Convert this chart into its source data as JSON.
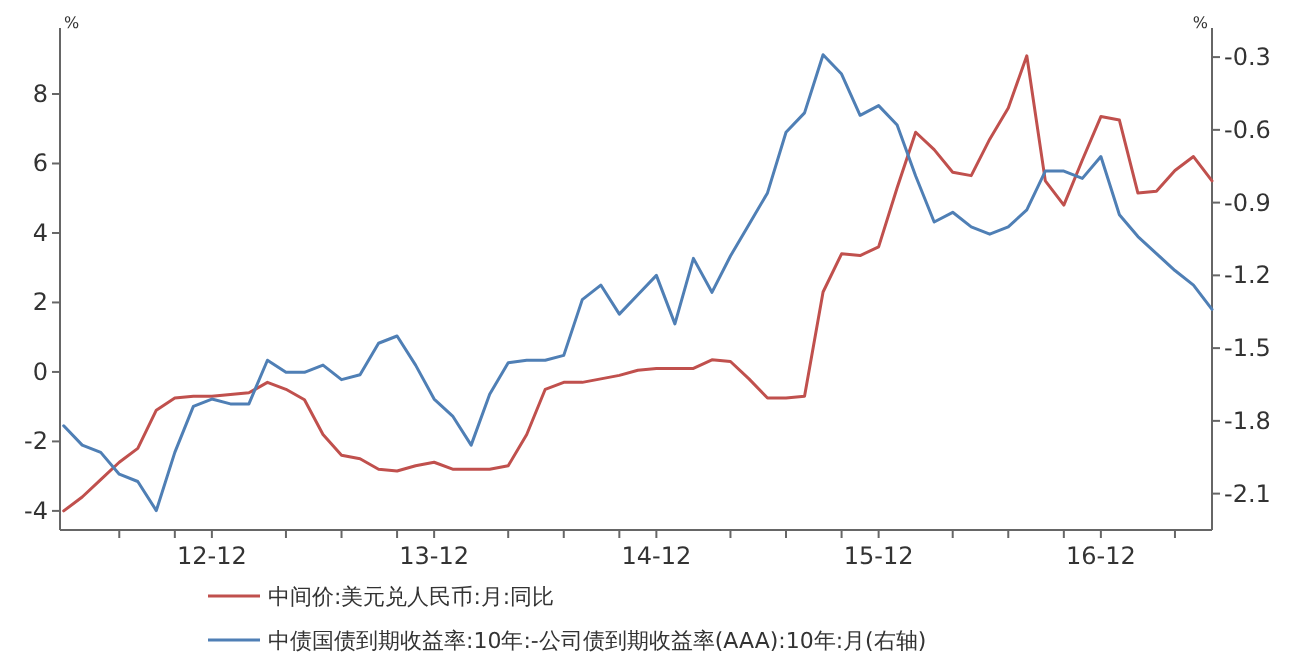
{
  "chart_data": {
    "type": "line",
    "ylabel": "%",
    "y2label": "%",
    "x": [
      "2012-04",
      "2012-05",
      "2012-06",
      "2012-07",
      "2012-08",
      "2012-09",
      "2012-10",
      "2012-11",
      "2012-12",
      "2013-01",
      "2013-02",
      "2013-03",
      "2013-04",
      "2013-05",
      "2013-06",
      "2013-07",
      "2013-08",
      "2013-09",
      "2013-10",
      "2013-11",
      "2013-12",
      "2014-01",
      "2014-02",
      "2014-03",
      "2014-04",
      "2014-05",
      "2014-06",
      "2014-07",
      "2014-08",
      "2014-09",
      "2014-10",
      "2014-11",
      "2014-12",
      "2015-01",
      "2015-02",
      "2015-03",
      "2015-04",
      "2015-05",
      "2015-06",
      "2015-07",
      "2015-08",
      "2015-09",
      "2015-10",
      "2015-11",
      "2015-12",
      "2016-01",
      "2016-02",
      "2016-03",
      "2016-04",
      "2016-05",
      "2016-06",
      "2016-07",
      "2016-08",
      "2016-09",
      "2016-10",
      "2016-11",
      "2016-12",
      "2017-01",
      "2017-02",
      "2017-03",
      "2017-04",
      "2017-05",
      "2017-06"
    ],
    "series": [
      {
        "name": "中间价:美元兑人民币:月:同比",
        "color": "#c0504d",
        "values": [
          -4.0,
          -3.6,
          -3.1,
          -2.6,
          -2.2,
          -1.1,
          -0.75,
          -0.7,
          -0.7,
          -0.65,
          -0.6,
          -0.3,
          -0.5,
          -0.8,
          -1.8,
          -2.4,
          -2.5,
          -2.8,
          -2.85,
          -2.7,
          -2.6,
          -2.8,
          -2.8,
          -2.8,
          -2.7,
          -1.8,
          -0.5,
          -0.3,
          -0.3,
          -0.2,
          -0.1,
          0.05,
          0.1,
          0.1,
          0.1,
          0.35,
          0.3,
          -0.2,
          -0.75,
          -0.75,
          -0.7,
          2.3,
          3.4,
          3.35,
          3.6,
          5.3,
          6.9,
          6.4,
          5.75,
          5.65,
          6.7,
          7.6,
          9.1,
          5.5,
          4.8,
          6.1,
          7.35,
          7.25,
          5.15,
          5.2,
          5.8,
          6.2,
          5.5
        ]
      },
      {
        "name": "中债国债到期收益率:10年:-公司债到期收益率(AAA):10年:月(右轴)",
        "color": "#4f7fb5",
        "axis": "y2",
        "values": [
          -1.82,
          -1.9,
          -1.93,
          -2.02,
          -2.05,
          -2.17,
          -1.93,
          -1.74,
          -1.71,
          -1.73,
          -1.73,
          -1.55,
          -1.6,
          -1.6,
          -1.57,
          -1.63,
          -1.61,
          -1.48,
          -1.45,
          -1.57,
          -1.71,
          -1.78,
          -1.9,
          -1.69,
          -1.56,
          -1.55,
          -1.55,
          -1.53,
          -1.3,
          -1.24,
          -1.36,
          -1.28,
          -1.2,
          -1.4,
          -1.13,
          -1.27,
          -1.12,
          -0.99,
          -0.86,
          -0.61,
          -0.53,
          -0.29,
          -0.37,
          -0.54,
          -0.5,
          -0.58,
          -0.79,
          -0.98,
          -0.94,
          -1.0,
          -1.03,
          -1.0,
          -0.93,
          -0.77,
          -0.77,
          -0.8,
          -0.71,
          -0.95,
          -1.04,
          -1.11,
          -1.18,
          -1.24,
          -1.34
        ]
      }
    ],
    "xlim": [
      "2012-03-25",
      "2017-06-01"
    ],
    "xticks": [
      {
        "value": "2012-07",
        "label": null
      },
      {
        "value": "2012-10",
        "label": null
      },
      {
        "value": "2012-12",
        "label": "12-12"
      },
      {
        "value": "2013-04",
        "label": null
      },
      {
        "value": "2013-07",
        "label": null
      },
      {
        "value": "2013-10",
        "label": null
      },
      {
        "value": "2013-12",
        "label": "13-12"
      },
      {
        "value": "2014-04",
        "label": null
      },
      {
        "value": "2014-07",
        "label": null
      },
      {
        "value": "2014-10",
        "label": null
      },
      {
        "value": "2014-12",
        "label": "14-12"
      },
      {
        "value": "2015-04",
        "label": null
      },
      {
        "value": "2015-07",
        "label": null
      },
      {
        "value": "2015-10",
        "label": null
      },
      {
        "value": "2015-12",
        "label": "15-12"
      },
      {
        "value": "2016-04",
        "label": null
      },
      {
        "value": "2016-07",
        "label": null
      },
      {
        "value": "2016-10",
        "label": null
      },
      {
        "value": "2016-12",
        "label": "16-12"
      },
      {
        "value": "2017-04",
        "label": null
      }
    ],
    "ylim": [
      -4.55,
      9.9
    ],
    "yticks": [
      -4,
      -2,
      0,
      2,
      4,
      6,
      8
    ],
    "y2lim": [
      -2.25,
      -0.18
    ],
    "y2ticks": [
      -2.1,
      -1.8,
      -1.5,
      -1.2,
      -0.9,
      -0.6,
      -0.3
    ],
    "legend": "bottom",
    "grid": false,
    "line_style": "solid",
    "marker": "none"
  }
}
